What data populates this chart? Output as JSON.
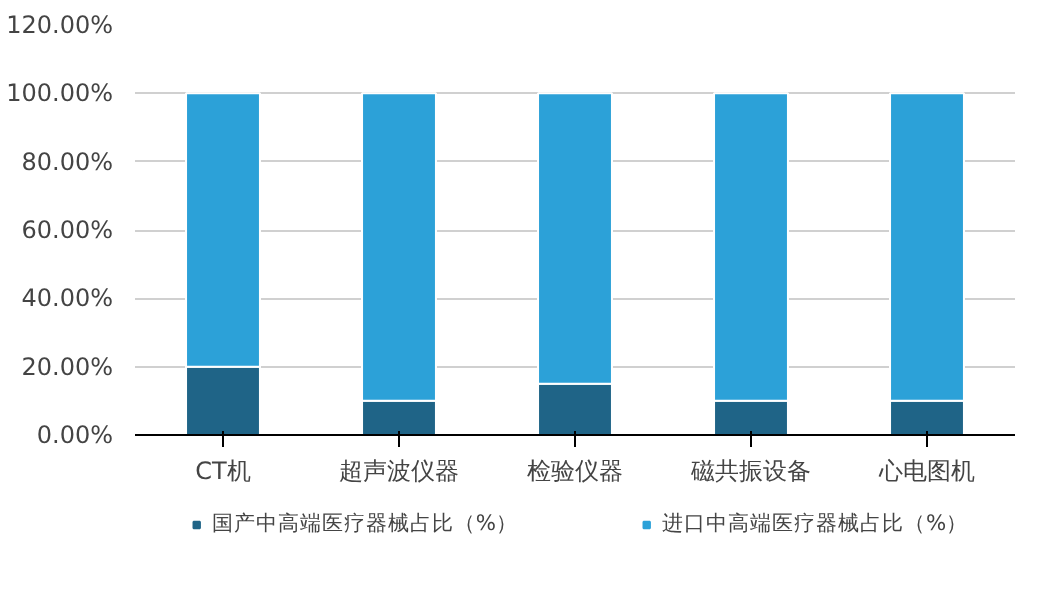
{
  "chart_data": {
    "type": "bar",
    "stacked": true,
    "categories": [
      "CT机",
      "超声波仪器",
      "检验仪器",
      "磁共振设备",
      "心电图机"
    ],
    "series": [
      {
        "name": "国产中高端医疗器械占比（%）",
        "color": "#1f6487",
        "values": [
          20,
          10,
          15,
          10,
          10
        ]
      },
      {
        "name": "进口中高端医疗器械占比（%）",
        "color": "#2ca1d8",
        "values": [
          80,
          90,
          85,
          90,
          90
        ]
      }
    ],
    "ylim": [
      0,
      120
    ],
    "yticks": [
      {
        "value": 0,
        "label": "0.00%"
      },
      {
        "value": 20,
        "label": "20.00%"
      },
      {
        "value": 40,
        "label": "40.00%"
      },
      {
        "value": 60,
        "label": "60.00%"
      },
      {
        "value": 80,
        "label": "80.00%"
      },
      {
        "value": 100,
        "label": "100.00%"
      },
      {
        "value": 120,
        "label": "120.00%"
      }
    ],
    "grid": "y",
    "legend": "bottom"
  }
}
